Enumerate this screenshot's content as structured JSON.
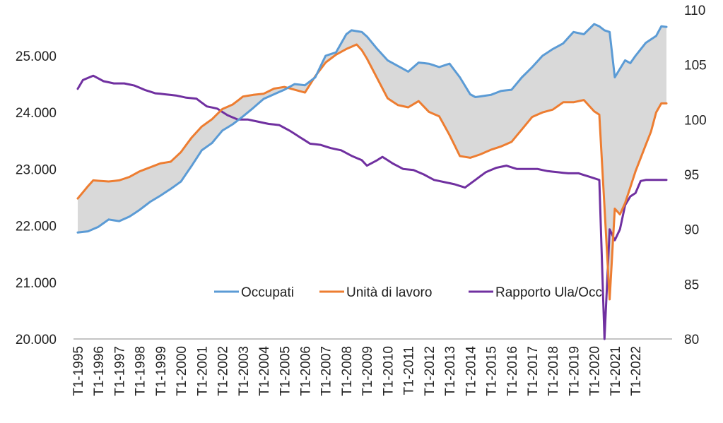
{
  "chart_data": {
    "type": "line",
    "title": "",
    "xlabel": "",
    "ylabel": "",
    "y2label": "",
    "ylim": [
      20000,
      26000
    ],
    "y2lim": [
      80,
      110
    ],
    "grid": false,
    "legend_position": "bottom-center (overlay)",
    "y_ticks": [
      "20.000",
      "21.000",
      "22.000",
      "23.000",
      "24.000",
      "25.000"
    ],
    "y2_ticks": [
      "80",
      "85",
      "90",
      "95",
      "100",
      "105",
      "110"
    ],
    "x_tick_labels": [
      "T1-1995",
      "T1-1996",
      "T1-1997",
      "T1-1998",
      "T1-1999",
      "T1-2000",
      "T1-2001",
      "T1-2002",
      "T1-2003",
      "T1-2004",
      "T1-2005",
      "T1-2006",
      "T1-2007",
      "T1-2008",
      "T1-2009",
      "T1-2010",
      "T1-2011",
      "T1-2012",
      "T1-2013",
      "T1-2014",
      "T1-2015",
      "T1-2016",
      "T1-2017",
      "T1-2018",
      "T1-2019",
      "T1-2020",
      "T1-2021",
      "T1-2022"
    ],
    "shaded_area": {
      "between": [
        "Occupati",
        "Unità di lavoro"
      ],
      "color": "#d9d9d9"
    },
    "series": [
      {
        "name": "Occupati",
        "color": "#5b9bd5",
        "axis": "left",
        "anchors": [
          [
            0,
            21880
          ],
          [
            2,
            21900
          ],
          [
            4,
            21980
          ],
          [
            6,
            22110
          ],
          [
            8,
            22080
          ],
          [
            10,
            22160
          ],
          [
            12,
            22280
          ],
          [
            14,
            22420
          ],
          [
            16,
            22530
          ],
          [
            18,
            22650
          ],
          [
            20,
            22780
          ],
          [
            22,
            23050
          ],
          [
            24,
            23330
          ],
          [
            26,
            23460
          ],
          [
            28,
            23680
          ],
          [
            30,
            23790
          ],
          [
            32,
            23930
          ],
          [
            34,
            24080
          ],
          [
            36,
            24240
          ],
          [
            38,
            24320
          ],
          [
            40,
            24400
          ],
          [
            42,
            24500
          ],
          [
            44,
            24480
          ],
          [
            46,
            24620
          ],
          [
            48,
            25000
          ],
          [
            50,
            25060
          ],
          [
            52,
            25380
          ],
          [
            53,
            25450
          ],
          [
            55,
            25420
          ],
          [
            56,
            25340
          ],
          [
            58,
            25120
          ],
          [
            60,
            24920
          ],
          [
            62,
            24820
          ],
          [
            64,
            24720
          ],
          [
            66,
            24880
          ],
          [
            68,
            24860
          ],
          [
            70,
            24800
          ],
          [
            72,
            24860
          ],
          [
            74,
            24620
          ],
          [
            76,
            24320
          ],
          [
            77,
            24270
          ],
          [
            80,
            24310
          ],
          [
            82,
            24380
          ],
          [
            84,
            24400
          ],
          [
            86,
            24620
          ],
          [
            88,
            24800
          ],
          [
            90,
            25000
          ],
          [
            92,
            25120
          ],
          [
            94,
            25220
          ],
          [
            96,
            25420
          ],
          [
            98,
            25380
          ],
          [
            100,
            25560
          ],
          [
            101,
            25520
          ],
          [
            102,
            25450
          ],
          [
            103,
            25420
          ],
          [
            104,
            24620
          ],
          [
            106,
            24920
          ],
          [
            107,
            24870
          ],
          [
            108,
            25000
          ],
          [
            110,
            25230
          ],
          [
            112,
            25350
          ],
          [
            113,
            25520
          ],
          [
            114,
            25510
          ]
        ]
      },
      {
        "name": "Unità di lavoro",
        "color": "#ed7d31",
        "axis": "left",
        "anchors": [
          [
            0,
            22480
          ],
          [
            2,
            22700
          ],
          [
            3,
            22800
          ],
          [
            6,
            22780
          ],
          [
            8,
            22800
          ],
          [
            10,
            22860
          ],
          [
            12,
            22960
          ],
          [
            14,
            23030
          ],
          [
            16,
            23100
          ],
          [
            18,
            23130
          ],
          [
            20,
            23300
          ],
          [
            22,
            23550
          ],
          [
            24,
            23750
          ],
          [
            26,
            23880
          ],
          [
            28,
            24060
          ],
          [
            30,
            24140
          ],
          [
            32,
            24280
          ],
          [
            34,
            24310
          ],
          [
            36,
            24330
          ],
          [
            38,
            24420
          ],
          [
            40,
            24450
          ],
          [
            42,
            24400
          ],
          [
            44,
            24350
          ],
          [
            46,
            24640
          ],
          [
            48,
            24880
          ],
          [
            50,
            25020
          ],
          [
            52,
            25120
          ],
          [
            54,
            25200
          ],
          [
            55,
            25100
          ],
          [
            56,
            24950
          ],
          [
            58,
            24600
          ],
          [
            60,
            24250
          ],
          [
            62,
            24130
          ],
          [
            64,
            24090
          ],
          [
            66,
            24200
          ],
          [
            68,
            24010
          ],
          [
            70,
            23930
          ],
          [
            72,
            23600
          ],
          [
            74,
            23230
          ],
          [
            76,
            23200
          ],
          [
            78,
            23260
          ],
          [
            80,
            23340
          ],
          [
            82,
            23400
          ],
          [
            84,
            23480
          ],
          [
            86,
            23700
          ],
          [
            88,
            23920
          ],
          [
            90,
            24000
          ],
          [
            92,
            24050
          ],
          [
            94,
            24180
          ],
          [
            96,
            24180
          ],
          [
            98,
            24220
          ],
          [
            100,
            24020
          ],
          [
            101,
            23960
          ],
          [
            103,
            20700
          ],
          [
            104,
            22300
          ],
          [
            105,
            22200
          ],
          [
            106,
            22400
          ],
          [
            108,
            22960
          ],
          [
            110,
            23430
          ],
          [
            111,
            23660
          ],
          [
            112,
            24000
          ],
          [
            113,
            24160
          ],
          [
            114,
            24160
          ]
        ]
      },
      {
        "name": "Rapporto Ula/Occ",
        "color": "#7030a0",
        "axis": "right",
        "anchors": [
          [
            0,
            102.8
          ],
          [
            1,
            103.6
          ],
          [
            3,
            104.0
          ],
          [
            5,
            103.5
          ],
          [
            7,
            103.3
          ],
          [
            9,
            103.3
          ],
          [
            11,
            103.1
          ],
          [
            13,
            102.7
          ],
          [
            15,
            102.4
          ],
          [
            17,
            102.3
          ],
          [
            19,
            102.2
          ],
          [
            21,
            102.0
          ],
          [
            23,
            101.9
          ],
          [
            25,
            101.2
          ],
          [
            27,
            101.0
          ],
          [
            29,
            100.4
          ],
          [
            31,
            100.0
          ],
          [
            33,
            100.0
          ],
          [
            35,
            99.8
          ],
          [
            37,
            99.6
          ],
          [
            39,
            99.5
          ],
          [
            41,
            99.0
          ],
          [
            43,
            98.4
          ],
          [
            45,
            97.8
          ],
          [
            47,
            97.7
          ],
          [
            49,
            97.4
          ],
          [
            51,
            97.2
          ],
          [
            53,
            96.7
          ],
          [
            55,
            96.3
          ],
          [
            56,
            95.8
          ],
          [
            58,
            96.3
          ],
          [
            59,
            96.6
          ],
          [
            61,
            96.0
          ],
          [
            63,
            95.5
          ],
          [
            65,
            95.4
          ],
          [
            67,
            95.0
          ],
          [
            69,
            94.5
          ],
          [
            71,
            94.3
          ],
          [
            73,
            94.1
          ],
          [
            75,
            93.8
          ],
          [
            77,
            94.5
          ],
          [
            79,
            95.2
          ],
          [
            81,
            95.6
          ],
          [
            83,
            95.8
          ],
          [
            85,
            95.5
          ],
          [
            87,
            95.5
          ],
          [
            89,
            95.5
          ],
          [
            91,
            95.3
          ],
          [
            93,
            95.2
          ],
          [
            95,
            95.1
          ],
          [
            97,
            95.1
          ],
          [
            99,
            94.8
          ],
          [
            101,
            94.5
          ],
          [
            102,
            80.0
          ],
          [
            103,
            90.0
          ],
          [
            104,
            89.0
          ],
          [
            105,
            90.0
          ],
          [
            106,
            92.2
          ],
          [
            107,
            93.0
          ],
          [
            108,
            93.3
          ],
          [
            109,
            94.4
          ],
          [
            110,
            94.5
          ],
          [
            111,
            94.5
          ],
          [
            114,
            94.5
          ]
        ]
      }
    ]
  }
}
